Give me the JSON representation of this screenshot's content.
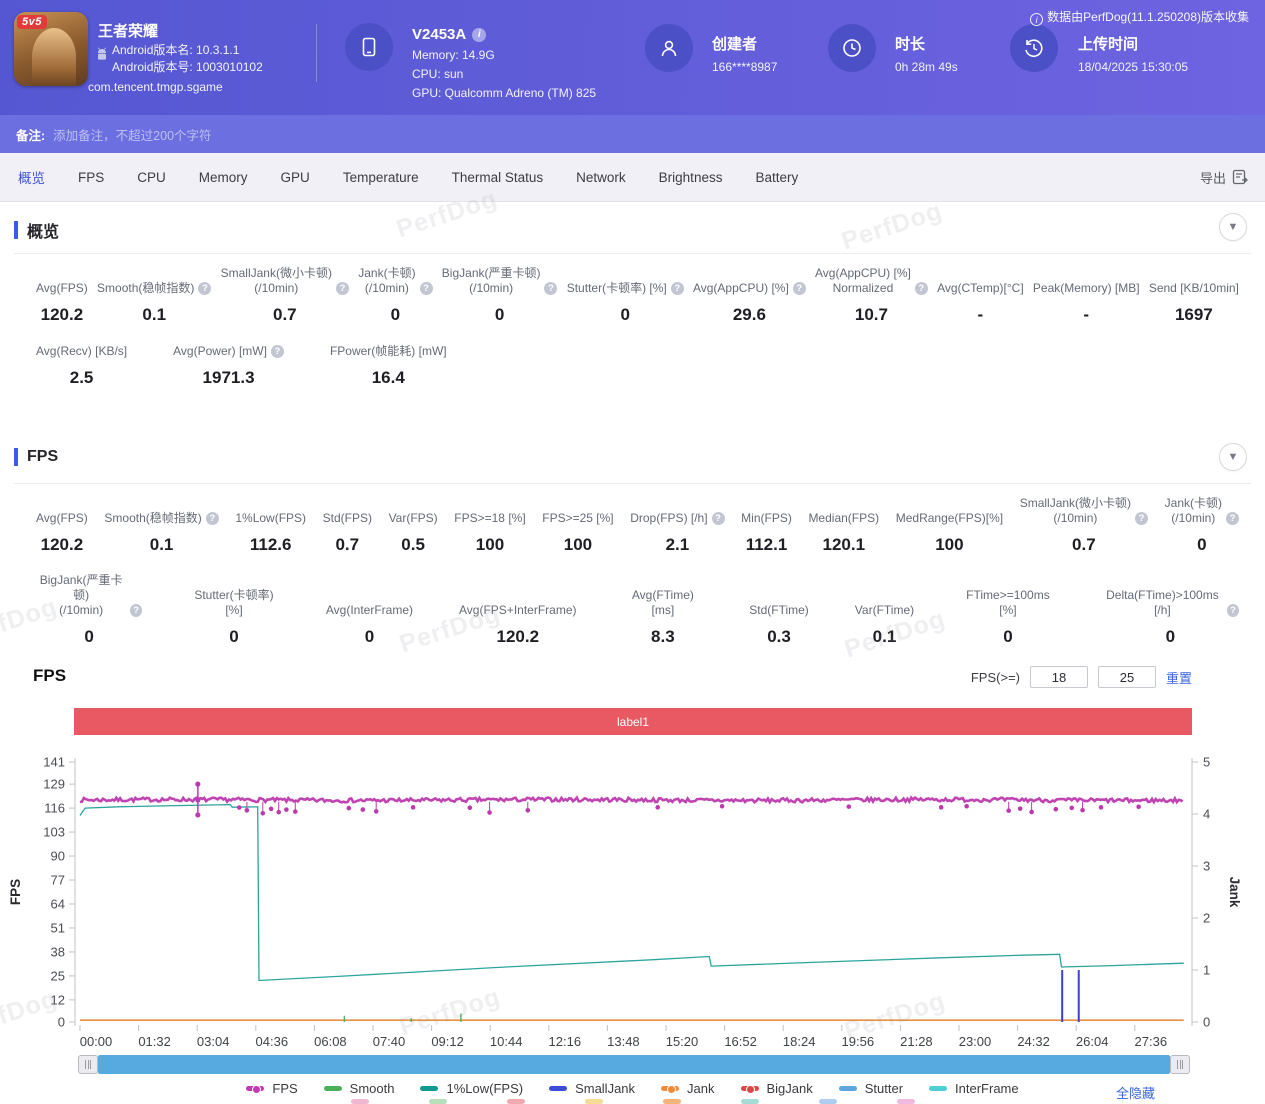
{
  "watermark": "PerfDog",
  "header": {
    "app": {
      "name": "王者荣耀",
      "badge": "5v5",
      "version_name": "Android版本名: 10.3.1.1",
      "version_code": "Android版本号: 1003010102",
      "package": "com.tencent.tmgp.sgame"
    },
    "device": {
      "model": "V2453A",
      "memory": "Memory: 14.9G",
      "cpu": "CPU: sun",
      "gpu": "GPU: Qualcomm Adreno (TM) 825"
    },
    "creator": {
      "label": "创建者",
      "value": "166****8987"
    },
    "duration": {
      "label": "时长",
      "value": "0h 28m 49s"
    },
    "upload": {
      "label": "上传时间",
      "value": "18/04/2025 15:30:05"
    },
    "source_note": "数据由PerfDog(11.1.250208)版本收集"
  },
  "remark": {
    "label": "备注:",
    "placeholder": "添加备注，不超过200个字符"
  },
  "nav": {
    "tabs": [
      {
        "label": "概览",
        "active": true
      },
      {
        "label": "FPS"
      },
      {
        "label": "CPU"
      },
      {
        "label": "Memory"
      },
      {
        "label": "GPU"
      },
      {
        "label": "Temperature"
      },
      {
        "label": "Thermal Status"
      },
      {
        "label": "Network"
      },
      {
        "label": "Brightness"
      },
      {
        "label": "Battery"
      }
    ],
    "export_label": "导出"
  },
  "overview_section": {
    "title": "概览",
    "rows": [
      [
        {
          "label": "Avg(FPS)",
          "value": "120.2"
        },
        {
          "label": "Smooth(稳帧指数)",
          "value": "0.1",
          "help": true
        },
        {
          "label": "SmallJank(微小卡顿)\n(/10min)",
          "value": "0.7",
          "help": true
        },
        {
          "label": "Jank(卡顿)\n(/10min)",
          "value": "0",
          "help": true
        },
        {
          "label": "BigJank(严重卡顿)\n(/10min)",
          "value": "0",
          "help": true
        },
        {
          "label": "Stutter(卡顿率) [%]",
          "value": "0",
          "help": true
        },
        {
          "label": "Avg(AppCPU) [%]",
          "value": "29.6",
          "help": true
        },
        {
          "label": "Avg(AppCPU) [%]\nNormalized",
          "value": "10.7",
          "help": true
        },
        {
          "label": "Avg(CTemp)[°C]",
          "value": "-"
        },
        {
          "label": "Peak(Memory) [MB]",
          "value": "-"
        },
        {
          "label": "Send [KB/10min]",
          "value": "1697"
        }
      ],
      [
        {
          "label": "Avg(Recv) [KB/s]",
          "value": "2.5"
        },
        {
          "label": "Avg(Power) [mW]",
          "value": "1971.3",
          "help": true
        },
        {
          "label": "FPower(帧能耗) [mW]",
          "value": "16.4"
        }
      ]
    ]
  },
  "fps_section": {
    "title": "FPS",
    "rows": [
      [
        {
          "label": "Avg(FPS)",
          "value": "120.2"
        },
        {
          "label": "Smooth(稳帧指数)",
          "value": "0.1",
          "help": true
        },
        {
          "label": "1%Low(FPS)",
          "value": "112.6"
        },
        {
          "label": "Std(FPS)",
          "value": "0.7"
        },
        {
          "label": "Var(FPS)",
          "value": "0.5"
        },
        {
          "label": "FPS>=18 [%]",
          "value": "100"
        },
        {
          "label": "FPS>=25 [%]",
          "value": "100"
        },
        {
          "label": "Drop(FPS) [/h]",
          "value": "2.1",
          "help": true
        },
        {
          "label": "Min(FPS)",
          "value": "112.1"
        },
        {
          "label": "Median(FPS)",
          "value": "120.1"
        },
        {
          "label": "MedRange(FPS)[%]",
          "value": "100"
        },
        {
          "label": "SmallJank(微小卡顿)\n(/10min)",
          "value": "0.7",
          "help": true
        },
        {
          "label": "Jank(卡顿)\n(/10min)",
          "value": "0",
          "help": true
        }
      ],
      [
        {
          "label": "BigJank(严重卡顿)\n(/10min)",
          "value": "0",
          "help": true
        },
        {
          "label": "Stutter(卡顿率) [%]",
          "value": "0"
        },
        {
          "label": "Avg(InterFrame)",
          "value": "0"
        },
        {
          "label": "Avg(FPS+InterFrame)",
          "value": "120.2"
        },
        {
          "label": "Avg(FTime) [ms]",
          "value": "8.3"
        },
        {
          "label": "Std(FTime)",
          "value": "0.3"
        },
        {
          "label": "Var(FTime)",
          "value": "0.1"
        },
        {
          "label": "FTime>=100ms [%]",
          "value": "0"
        },
        {
          "label": "Delta(FTime)>100ms [/h]",
          "value": "0",
          "help": true
        }
      ]
    ]
  },
  "fps_chart": {
    "title": "FPS",
    "threshold_label": "FPS(>=)",
    "threshold_low": "18",
    "threshold_high": "25",
    "reset_label": "重置",
    "region_label": "label1",
    "hide_all_label": "全隐藏",
    "legend": [
      {
        "label": "FPS",
        "color": "#c23ab3",
        "dot": true
      },
      {
        "label": "Smooth",
        "color": "#4cb05a"
      },
      {
        "label": "1%Low(FPS)",
        "color": "#0d9b8f"
      },
      {
        "label": "SmallJank",
        "color": "#3c4ed9"
      },
      {
        "label": "Jank",
        "color": "#ee8c3e",
        "dot": true
      },
      {
        "label": "BigJank",
        "color": "#dc4747",
        "dot": true
      },
      {
        "label": "Stutter",
        "color": "#5ba6dd"
      },
      {
        "label": "InterFrame",
        "color": "#4ecfd2"
      }
    ],
    "legend_cutoff_colors": [
      "#f0b7d2",
      "#b5e0bb",
      "#f2a9b0",
      "#f6dc96",
      "#f6b478",
      "#a5dcd6",
      "#afcdee",
      "#f0bade"
    ]
  },
  "chart_data": {
    "type": "line",
    "title": "FPS",
    "x_tick_labels": [
      "00:00",
      "01:32",
      "03:04",
      "04:36",
      "06:08",
      "07:40",
      "09:12",
      "10:44",
      "12:16",
      "13:48",
      "15:20",
      "16:52",
      "18:24",
      "19:56",
      "21:28",
      "23:00",
      "24:32",
      "26:04",
      "27:36"
    ],
    "x_tick_interval_s": 92,
    "x_max_s": 1733,
    "y_left": {
      "label": "FPS",
      "ticks": [
        141,
        129,
        116,
        103,
        90,
        77,
        64,
        51,
        38,
        25,
        12,
        0
      ],
      "max": 141
    },
    "y_right": {
      "label": "Jank",
      "ticks": [
        5,
        4,
        3,
        2,
        1,
        0
      ],
      "max": 5
    },
    "series": [
      {
        "name": "1%Low(FPS)",
        "axis": "left",
        "style": "line",
        "color": "#2ca49e",
        "width": 1.3,
        "points": [
          [
            0,
            112
          ],
          [
            8,
            116
          ],
          [
            60,
            116.7
          ],
          [
            160,
            117.4
          ],
          [
            236,
            117.9
          ],
          [
            239,
            116.5
          ],
          [
            279,
            116.7
          ],
          [
            281,
            22.5
          ],
          [
            420,
            25
          ],
          [
            650,
            29.5
          ],
          [
            900,
            33.8
          ],
          [
            988,
            35.5
          ],
          [
            991,
            30.3
          ],
          [
            1150,
            32.3
          ],
          [
            1350,
            34.8
          ],
          [
            1480,
            36.2
          ],
          [
            1538,
            36.7
          ],
          [
            1541,
            29.8
          ],
          [
            1620,
            30.6
          ],
          [
            1733,
            31.9
          ]
        ]
      },
      {
        "name": "Jank",
        "axis": "right",
        "style": "line",
        "color": "#e89140",
        "width": 1.6,
        "points": [
          [
            0,
            0.035
          ],
          [
            1733,
            0.035
          ]
        ]
      },
      {
        "name": "Smooth",
        "axis": "right",
        "style": "events",
        "color": "#4cb05a",
        "width": 1.4,
        "events": [
          [
            415,
            0.12
          ],
          [
            520,
            0.07
          ],
          [
            598,
            0.16
          ]
        ]
      },
      {
        "name": "SmallJank",
        "axis": "right",
        "style": "events",
        "color": "#3a41d8",
        "width": 2,
        "events": [
          [
            1542,
            1
          ],
          [
            1568,
            1
          ]
        ]
      },
      {
        "name": "FPS",
        "axis": "left",
        "style": "noisy",
        "color": "#bd39ae",
        "width": 2.6,
        "baseline": 120.4,
        "noise": 1.1,
        "spike": {
          "t": 185,
          "high": 129,
          "low": 112.3
        },
        "dip_points": [
          [
            250,
            116.3
          ],
          [
            262,
            114.8
          ],
          [
            287,
            113.2
          ],
          [
            300,
            115.6
          ],
          [
            312,
            113.8
          ],
          [
            324,
            115.2
          ],
          [
            338,
            114.1
          ],
          [
            422,
            116
          ],
          [
            444,
            115.2
          ],
          [
            465,
            114.2
          ],
          [
            523,
            116.4
          ],
          [
            612,
            116.2
          ],
          [
            643,
            113.6
          ],
          [
            703,
            114.8
          ],
          [
            907,
            116.4
          ],
          [
            1008,
            117
          ],
          [
            1207,
            116.8
          ],
          [
            1352,
            116.4
          ],
          [
            1392,
            117
          ],
          [
            1458,
            114.6
          ],
          [
            1476,
            115.7
          ],
          [
            1494,
            113.9
          ],
          [
            1532,
            115.4
          ],
          [
            1557,
            116.1
          ],
          [
            1574,
            114.9
          ],
          [
            1603,
            116.4
          ],
          [
            1662,
            116.7
          ]
        ]
      }
    ]
  }
}
